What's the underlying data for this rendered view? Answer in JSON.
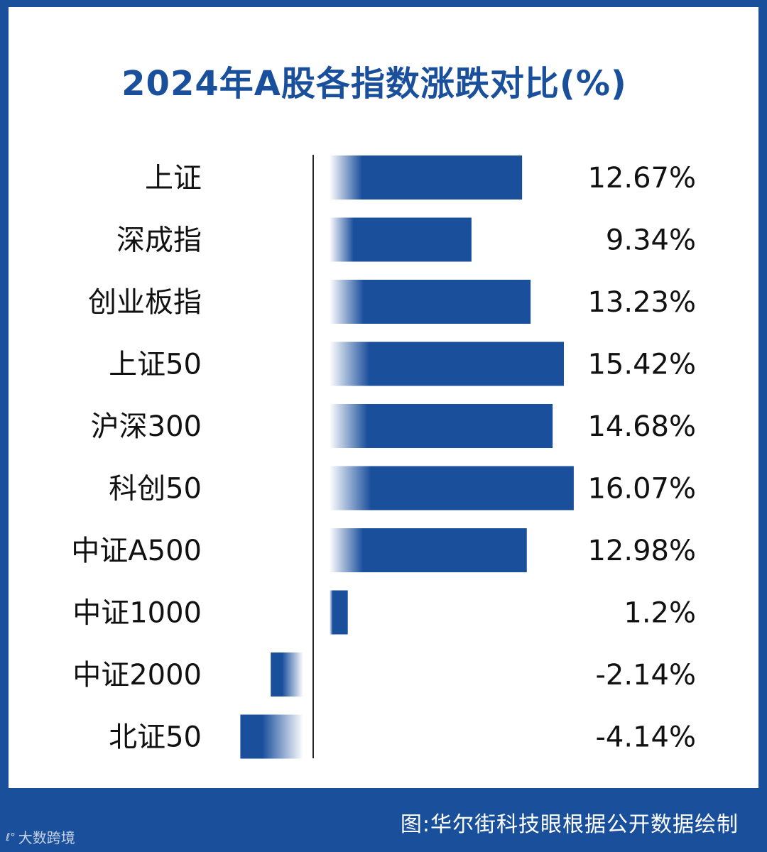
{
  "title": "2024年A股各指数涨跌对比(%)",
  "source": "图:华尔街科技眼根据公开数据绘制",
  "watermark": "大数跨境",
  "colors": {
    "bar": "#1a4f9c",
    "frame": "#1a4f9c",
    "title": "#1a4f9c",
    "text": "#111111"
  },
  "chart_data": {
    "type": "bar",
    "orientation": "horizontal",
    "title": "2024年A股各指数涨跌对比(%)",
    "categories": [
      "上证",
      "深成指",
      "创业板指",
      "上证50",
      "沪深300",
      "科创50",
      "中证A500",
      "中证1000",
      "中证2000",
      "北证50"
    ],
    "values": [
      12.67,
      9.34,
      13.23,
      15.42,
      14.68,
      16.07,
      12.98,
      1.2,
      -2.14,
      -4.14
    ],
    "value_labels": [
      "12.67%",
      "9.34%",
      "13.23%",
      "15.42%",
      "14.68%",
      "16.07%",
      "12.98%",
      "1.2%",
      "-2.14%",
      "-4.14%"
    ],
    "xlabel": "",
    "ylabel": "",
    "grid": false,
    "legend": "none"
  }
}
